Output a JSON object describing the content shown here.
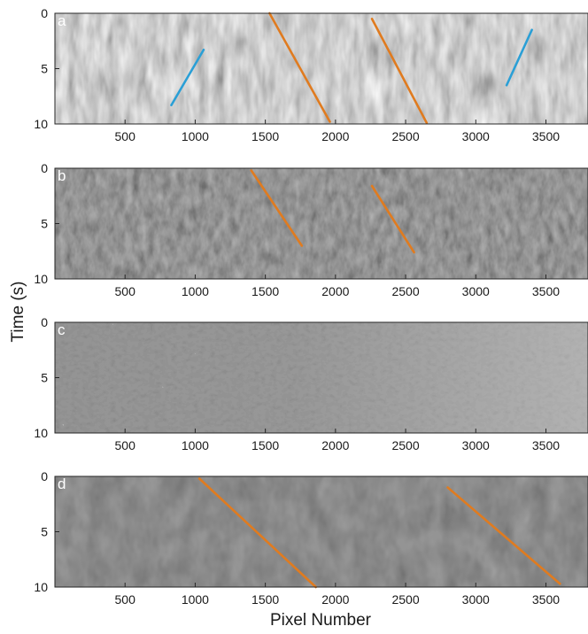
{
  "chart_data": {
    "type": "image-panels",
    "xlabel": "Pixel Number",
    "ylabel": "Time (s)",
    "xlim": [
      0,
      3800
    ],
    "ylim": [
      0,
      10
    ],
    "y_reversed": true,
    "xticks": [
      500,
      1000,
      1500,
      2000,
      2500,
      3000,
      3500
    ],
    "yticks": [
      0,
      5,
      10
    ],
    "colors": {
      "orange": "#e07b1f",
      "blue": "#2a9fd6"
    },
    "panels": [
      {
        "letter": "a",
        "background": "light-gray",
        "lines": [
          {
            "color": "blue",
            "x": [
              830,
              1060
            ],
            "y": [
              8.3,
              3.3
            ]
          },
          {
            "color": "orange",
            "x": [
              1530,
              1960
            ],
            "y": [
              0.0,
              9.8
            ]
          },
          {
            "color": "orange",
            "x": [
              2260,
              2650
            ],
            "y": [
              0.5,
              9.9
            ]
          },
          {
            "color": "blue",
            "x": [
              3220,
              3400
            ],
            "y": [
              6.5,
              1.5
            ]
          }
        ]
      },
      {
        "letter": "b",
        "background": "dark-gray",
        "lines": [
          {
            "color": "orange",
            "x": [
              1400,
              1760
            ],
            "y": [
              0.2,
              7.0
            ]
          },
          {
            "color": "orange",
            "x": [
              2260,
              2560
            ],
            "y": [
              1.6,
              7.6
            ]
          }
        ]
      },
      {
        "letter": "c",
        "background": "dark-gray",
        "lines": []
      },
      {
        "letter": "d",
        "background": "dark-gray",
        "lines": [
          {
            "color": "orange",
            "x": [
              1030,
              1860
            ],
            "y": [
              0.2,
              10.0
            ]
          },
          {
            "color": "orange",
            "x": [
              2800,
              3600
            ],
            "y": [
              1.0,
              9.7
            ]
          }
        ]
      }
    ]
  }
}
